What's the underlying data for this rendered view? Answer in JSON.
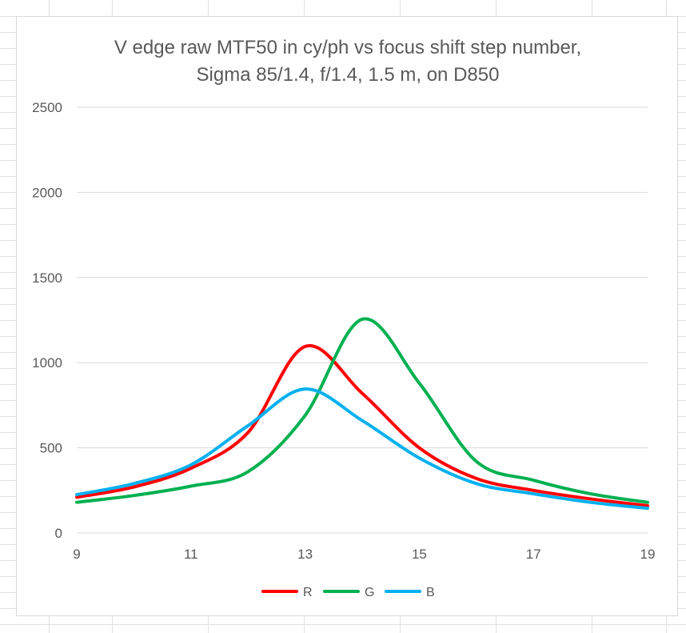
{
  "chart_data": {
    "type": "line",
    "title": "V edge raw MTF50 in cy/ph vs focus shift step number,",
    "subtitle": "Sigma 85/1.4, f/1.4, 1.5 m, on D850",
    "xlabel": "",
    "ylabel": "",
    "xlim": [
      9,
      19
    ],
    "ylim": [
      0,
      2500
    ],
    "x_ticks": [
      "9",
      "11",
      "13",
      "15",
      "17",
      "19"
    ],
    "y_ticks": [
      "0",
      "500",
      "1000",
      "1500",
      "2000",
      "2500"
    ],
    "grid": "horizontal major gridlines",
    "legend_position": "bottom",
    "x": [
      9,
      10,
      11,
      12,
      13,
      14,
      15,
      16,
      17,
      18,
      19
    ],
    "series": [
      {
        "name": "R",
        "color": "#ff0000",
        "values": [
          210,
          270,
          380,
          590,
          1095,
          820,
          500,
          320,
          250,
          200,
          160
        ]
      },
      {
        "name": "G",
        "color": "#00b050",
        "values": [
          180,
          220,
          275,
          360,
          690,
          1255,
          880,
          420,
          310,
          230,
          180
        ]
      },
      {
        "name": "B",
        "color": "#00b0f0",
        "values": [
          225,
          290,
          400,
          630,
          845,
          660,
          440,
          290,
          230,
          180,
          145
        ]
      }
    ]
  }
}
